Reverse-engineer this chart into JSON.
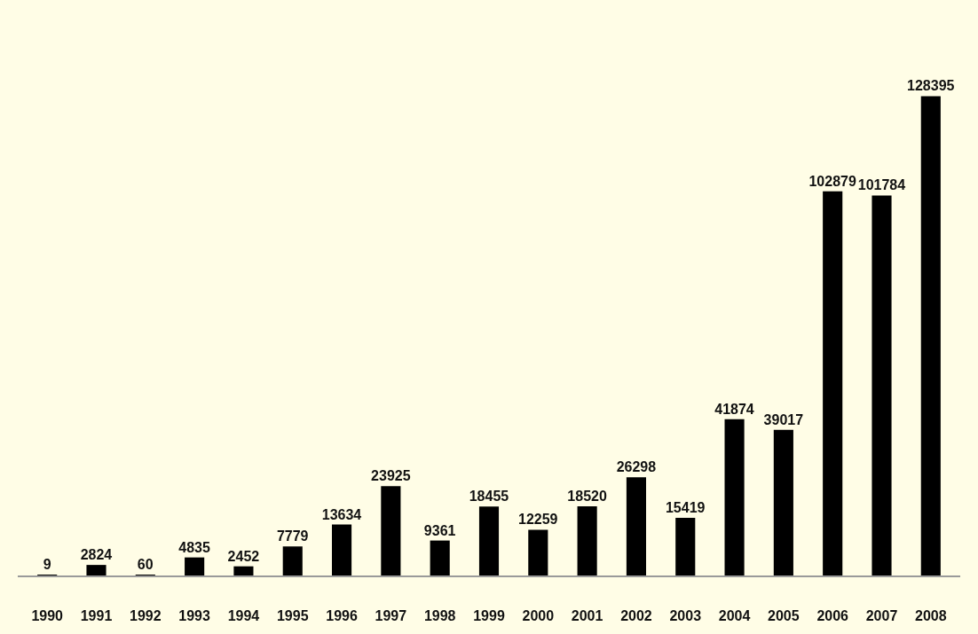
{
  "chart_data": {
    "type": "bar",
    "categories": [
      "1990",
      "1991",
      "1992",
      "1993",
      "1994",
      "1995",
      "1996",
      "1997",
      "1998",
      "1999",
      "2000",
      "2001",
      "2002",
      "2003",
      "2004",
      "2005",
      "2006",
      "2007",
      "2008"
    ],
    "values": [
      9,
      2824,
      60,
      4835,
      2452,
      7779,
      13634,
      23925,
      9361,
      18455,
      12259,
      18520,
      26298,
      15419,
      41874,
      39017,
      102879,
      101784,
      128395
    ],
    "color": "#000000",
    "data_labels": true,
    "tick_labels": "x",
    "grid": false,
    "legend": false
  }
}
